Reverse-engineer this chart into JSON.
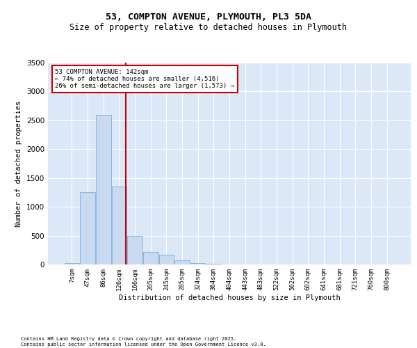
{
  "title_line1": "53, COMPTON AVENUE, PLYMOUTH, PL3 5DA",
  "title_line2": "Size of property relative to detached houses in Plymouth",
  "xlabel": "Distribution of detached houses by size in Plymouth",
  "ylabel": "Number of detached properties",
  "bar_labels": [
    "7sqm",
    "47sqm",
    "86sqm",
    "126sqm",
    "166sqm",
    "205sqm",
    "245sqm",
    "285sqm",
    "324sqm",
    "364sqm",
    "404sqm",
    "443sqm",
    "483sqm",
    "522sqm",
    "562sqm",
    "602sqm",
    "641sqm",
    "681sqm",
    "721sqm",
    "760sqm",
    "800sqm"
  ],
  "bar_values": [
    30,
    1250,
    2600,
    1350,
    500,
    220,
    175,
    70,
    30,
    10,
    5,
    2,
    2,
    0,
    0,
    0,
    0,
    0,
    0,
    0,
    0
  ],
  "bar_color": "#c9d9f0",
  "bar_edge_color": "#7bafd4",
  "property_line_color": "#cc0000",
  "ylim": [
    0,
    3500
  ],
  "yticks": [
    0,
    500,
    1000,
    1500,
    2000,
    2500,
    3000,
    3500
  ],
  "background_color": "#dce8f8",
  "grid_color": "#ffffff",
  "annotation_text": "53 COMPTON AVENUE: 142sqm\n← 74% of detached houses are smaller (4,516)\n26% of semi-detached houses are larger (1,573) →",
  "annotation_box_color": "#cc0000",
  "footer_line1": "Contains HM Land Registry data © Crown copyright and database right 2025.",
  "footer_line2": "Contains public sector information licensed under the Open Government Licence v3.0."
}
